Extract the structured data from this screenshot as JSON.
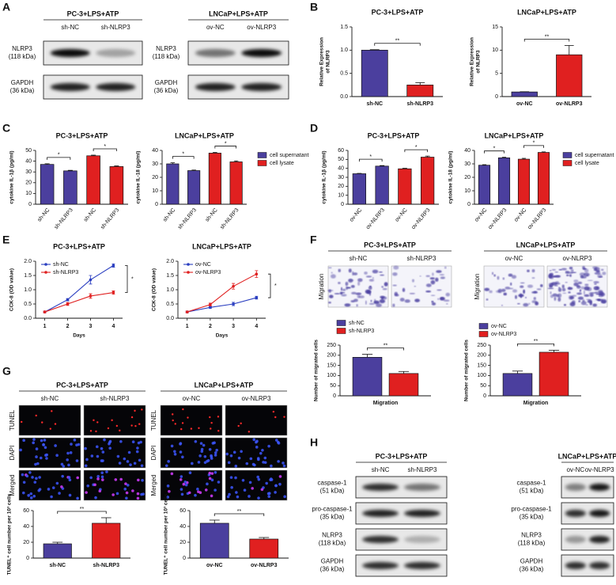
{
  "panels": {
    "A": {
      "label": "A",
      "blots": [
        {
          "title": "PC-3+LPS+ATP",
          "lanes": [
            "sh-NC",
            "sh-NLRP3"
          ],
          "rows": [
            {
              "name": "NLRP3",
              "size": "(118 kDa)"
            },
            {
              "name": "GAPDH",
              "size": "(36 kDa)"
            }
          ]
        },
        {
          "title": "LNCaP+LPS+ATP",
          "lanes": [
            "ov-NC",
            "ov-NLRP3"
          ],
          "rows": [
            {
              "name": "NLRP3",
              "size": "(118 kDa)"
            },
            {
              "name": "GAPDH",
              "size": "(36 kDa)"
            }
          ]
        }
      ]
    },
    "B": {
      "label": "B"
    },
    "C": {
      "label": "C"
    },
    "D": {
      "label": "D"
    },
    "E": {
      "label": "E"
    },
    "F": {
      "label": "F",
      "images": [
        {
          "title": "PC-3+LPS+ATP",
          "lanes": [
            "sh-NC",
            "sh-NLRP3"
          ],
          "rows": [
            "Migration"
          ]
        },
        {
          "title": "LNCaP+LPS+ATP",
          "lanes": [
            "ov-NC",
            "ov-NLRP3"
          ],
          "rows": [
            "Migration"
          ]
        }
      ]
    },
    "G": {
      "label": "G",
      "images": [
        {
          "title": "PC-3+LPS+ATP",
          "lanes": [
            "sh-NC",
            "sh-NLRP3"
          ],
          "rows": [
            "TUNEL",
            "DAPI",
            "Merged"
          ]
        },
        {
          "title": "LNCaP+LPS+ATP",
          "lanes": [
            "ov-NC",
            "ov-NLRP3"
          ],
          "rows": [
            "TUNEL",
            "DAPI",
            "Merged"
          ]
        }
      ]
    },
    "H": {
      "label": "H",
      "blots": [
        {
          "title": "PC-3+LPS+ATP",
          "lanes": [
            "sh-NC",
            "sh-NLRP3"
          ],
          "rows": [
            {
              "name": "caspase-1",
              "size": "(51 kDa)"
            },
            {
              "name": "pro-caspase-1",
              "size": "(35 kDa)"
            },
            {
              "name": "NLRP3",
              "size": "(118 kDa)"
            },
            {
              "name": "GAPDH",
              "size": "(36 kDa)"
            }
          ]
        },
        {
          "title": "LNCaP+LPS+ATP",
          "lanes": [
            "ov-NC",
            "ov-NLRP3"
          ],
          "rows": [
            {
              "name": "caspase-1",
              "size": "(51 kDa)"
            },
            {
              "name": "pro-caspase-1",
              "size": "(35 kDa)"
            },
            {
              "name": "NLRP3",
              "size": "(118 kDa)"
            },
            {
              "name": "GAPDH",
              "size": "(36 kDa)"
            }
          ]
        }
      ]
    }
  },
  "chart_data": [
    {
      "type": "bar",
      "title": "PC-3+LPS+ATP",
      "ylabel": [
        "Relative Expression",
        "of NLRP3"
      ],
      "categories": [
        "sh-NC",
        "sh-NLRP3"
      ],
      "series": [
        {
          "color": "#4b3f9e",
          "values": [
            1.0,
            null
          ],
          "errors": [
            0.01,
            null
          ]
        },
        {
          "color": "#e02020",
          "values": [
            null,
            0.25
          ],
          "errors": [
            null,
            0.05
          ]
        }
      ],
      "ylim": [
        0,
        1.5
      ],
      "yticks": [
        {
          "value": 0,
          "label": "0.0"
        },
        0.5,
        {
          "value": 1,
          "label": "1.0"
        },
        1.5
      ],
      "annotations": [
        "**"
      ]
    },
    {
      "type": "bar",
      "title": "LNCaP+LPS+ATP",
      "ylabel": [
        "Relative Expression",
        "of NLRP3"
      ],
      "categories": [
        "ov-NC",
        "ov-NLRP3"
      ],
      "series": [
        {
          "color": "#4b3f9e",
          "values": [
            1,
            null
          ],
          "errors": [
            0.05,
            null
          ]
        },
        {
          "color": "#e02020",
          "values": [
            null,
            9
          ],
          "errors": [
            null,
            2
          ]
        }
      ],
      "ylim": [
        0,
        15
      ],
      "yticks": [
        0,
        5,
        10,
        15
      ],
      "annotations": [
        "**"
      ]
    },
    {
      "type": "bar",
      "title": "PC-3+LPS+ATP",
      "ylabel": "cytokine IL-1β (pg/ml)",
      "categories": [
        "sh-NC",
        "sh-NLRP3",
        "sh-NC",
        "sh-NLRP3"
      ],
      "series": [
        {
          "color": "#4b3f9e",
          "values": [
            37,
            31,
            null,
            null
          ],
          "errors": [
            0.6,
            0.5,
            null,
            null
          ]
        },
        {
          "color": "#e02020",
          "values": [
            null,
            null,
            45,
            35
          ],
          "errors": [
            null,
            null,
            0.6,
            0.6
          ]
        }
      ],
      "ylim": [
        0,
        50
      ],
      "yticks": [
        0,
        10,
        20,
        30,
        40,
        50
      ],
      "annotations": [
        "*",
        "*"
      ]
    },
    {
      "type": "bar",
      "title": "LNCaP+LPS+ATP",
      "ylabel": "cytokine IL-18 (pg/ml)",
      "categories": [
        "sh-NC",
        "sh-NLRP3",
        "sh-NC",
        "sh-NLRP3"
      ],
      "series": [
        {
          "name": "cell supernatant",
          "color": "#4b3f9e",
          "values": [
            30,
            25,
            null,
            null
          ],
          "errors": [
            0.8,
            0.4,
            null,
            null
          ]
        },
        {
          "name": "cell lysate",
          "color": "#e02020",
          "values": [
            null,
            null,
            38,
            31.5
          ],
          "errors": [
            null,
            null,
            0.5,
            0.7
          ]
        }
      ],
      "ylim": [
        0,
        40
      ],
      "yticks": [
        0,
        10,
        20,
        30,
        40
      ],
      "annotations": [
        "*",
        "*"
      ]
    },
    {
      "type": "bar",
      "title": "PC-3+LPS+ATP",
      "ylabel": "cytokine IL-1β (pg/ml)",
      "categories": [
        "ov-NC",
        "ov-NLRP3",
        "ov-NC",
        "ov-NLRP3"
      ],
      "series": [
        {
          "color": "#4b3f9e",
          "values": [
            34,
            42.5,
            null,
            null
          ],
          "errors": [
            0.4,
            0.6,
            null,
            null
          ]
        },
        {
          "color": "#e02020",
          "values": [
            null,
            null,
            39.5,
            52.5
          ],
          "errors": [
            null,
            null,
            0.6,
            1.2
          ]
        }
      ],
      "ylim": [
        0,
        60
      ],
      "yticks": [
        0,
        10,
        20,
        30,
        40,
        50,
        60
      ],
      "annotations": [
        "*",
        "*"
      ]
    },
    {
      "type": "bar",
      "title": "LNCaP+LPS+ATP",
      "ylabel": "cytokine IL-18 (pg/ml)",
      "categories": [
        "ov-NC",
        "ov-NLRP3",
        "ov-NC",
        "ov-NLRP3"
      ],
      "series": [
        {
          "name": "cell supernatant",
          "color": "#4b3f9e",
          "values": [
            29,
            34.5,
            null,
            null
          ],
          "errors": [
            0.4,
            0.4,
            null,
            null
          ]
        },
        {
          "name": "cell lysate",
          "color": "#e02020",
          "values": [
            null,
            null,
            33.5,
            38.5
          ],
          "errors": [
            null,
            null,
            0.6,
            0.4
          ]
        }
      ],
      "ylim": [
        0,
        40
      ],
      "yticks": [
        0,
        10,
        20,
        30,
        40
      ],
      "annotations": [
        "*",
        "*"
      ]
    },
    {
      "type": "line",
      "title": "PC-3+LPS+ATP",
      "xlabel": "Days",
      "ylabel": "CCK-8 (OD value)",
      "x": [
        1,
        2,
        3,
        4
      ],
      "series": [
        {
          "name": "sh-NC",
          "color": "#2b3fc0",
          "values": [
            0.22,
            0.65,
            1.35,
            1.85
          ],
          "errors": [
            0.03,
            0.04,
            0.15,
            0.06
          ]
        },
        {
          "name": "sh-NLRP3",
          "color": "#e02020",
          "values": [
            0.22,
            0.5,
            0.78,
            0.9
          ],
          "errors": [
            0.03,
            0.05,
            0.08,
            0.06
          ]
        }
      ],
      "xlim": [
        0.6,
        4.4
      ],
      "xticks": [
        1,
        2,
        3,
        4
      ],
      "ylim": [
        0,
        2
      ],
      "yticks": [
        {
          "value": 0,
          "label": "0.0"
        },
        0.5,
        {
          "value": 1,
          "label": "1.0"
        },
        1.5,
        {
          "value": 2,
          "label": "2.0"
        }
      ],
      "annotations": [
        "*"
      ]
    },
    {
      "type": "line",
      "title": "LNCaP+LPS+ATP",
      "xlabel": "Days",
      "ylabel": "CCK-8 (OD value)",
      "x": [
        1,
        2,
        3,
        4
      ],
      "series": [
        {
          "name": "ov-NC",
          "color": "#2b3fc0",
          "values": [
            0.22,
            0.38,
            0.5,
            0.72
          ],
          "errors": [
            0.03,
            0.03,
            0.06,
            0.05
          ]
        },
        {
          "name": "ov-NLRP3",
          "color": "#e02020",
          "values": [
            0.22,
            0.48,
            1.12,
            1.55
          ],
          "errors": [
            0.03,
            0.05,
            0.1,
            0.12
          ]
        }
      ],
      "xlim": [
        0.6,
        4.4
      ],
      "xticks": [
        1,
        2,
        3,
        4
      ],
      "ylim": [
        0,
        2
      ],
      "yticks": [
        {
          "value": 0,
          "label": "0.0"
        },
        0.5,
        {
          "value": 1,
          "label": "1.0"
        },
        1.5,
        {
          "value": 2,
          "label": "2.0"
        }
      ],
      "annotations": [
        "*"
      ]
    },
    {
      "type": "bar",
      "ylabel": "Number of migrated cells",
      "categories": [
        "Migration"
      ],
      "series": [
        {
          "name": "sh-NC",
          "color": "#4b3f9e",
          "values": [
            190
          ],
          "errors": [
            15
          ]
        },
        {
          "name": "sh-NLRP3",
          "color": "#e02020",
          "values": [
            110
          ],
          "errors": [
            10
          ]
        }
      ],
      "ylim": [
        0,
        250
      ],
      "yticks": [
        0,
        50,
        100,
        150,
        200,
        250
      ],
      "annotations": [
        "**"
      ]
    },
    {
      "type": "bar",
      "ylabel": "Number of migrated cells",
      "categories": [
        "Migration"
      ],
      "series": [
        {
          "name": "ov-NC",
          "color": "#4b3f9e",
          "values": [
            110
          ],
          "errors": [
            12
          ]
        },
        {
          "name": "ov-NLRP3",
          "color": "#e02020",
          "values": [
            215
          ],
          "errors": [
            10
          ]
        }
      ],
      "ylim": [
        0,
        250
      ],
      "yticks": [
        0,
        50,
        100,
        150,
        200,
        250
      ],
      "annotations": [
        "**"
      ]
    },
    {
      "type": "bar",
      "ylabel": "TUNEL⁺ cell number per 10³ cells",
      "categories": [
        "sh-NC",
        "sh-NLRP3"
      ],
      "series": [
        {
          "color": "#4b3f9e",
          "values": [
            18,
            null
          ],
          "errors": [
            2,
            null
          ]
        },
        {
          "color": "#e02020",
          "values": [
            null,
            44
          ],
          "errors": [
            null,
            7
          ]
        }
      ],
      "ylim": [
        0,
        60
      ],
      "yticks": [
        0,
        20,
        40,
        60
      ],
      "annotations": [
        "**"
      ]
    },
    {
      "type": "bar",
      "ylabel": "TUNEL⁺ cell number per 10³ cells",
      "categories": [
        "ov-NC",
        "ov-NLRP3"
      ],
      "series": [
        {
          "color": "#4b3f9e",
          "values": [
            44,
            null
          ],
          "errors": [
            4,
            null
          ]
        },
        {
          "color": "#e02020",
          "values": [
            null,
            24
          ],
          "errors": [
            null,
            2
          ]
        }
      ],
      "ylim": [
        0,
        60
      ],
      "yticks": [
        0,
        20,
        40,
        60
      ],
      "annotations": [
        "**"
      ]
    }
  ]
}
